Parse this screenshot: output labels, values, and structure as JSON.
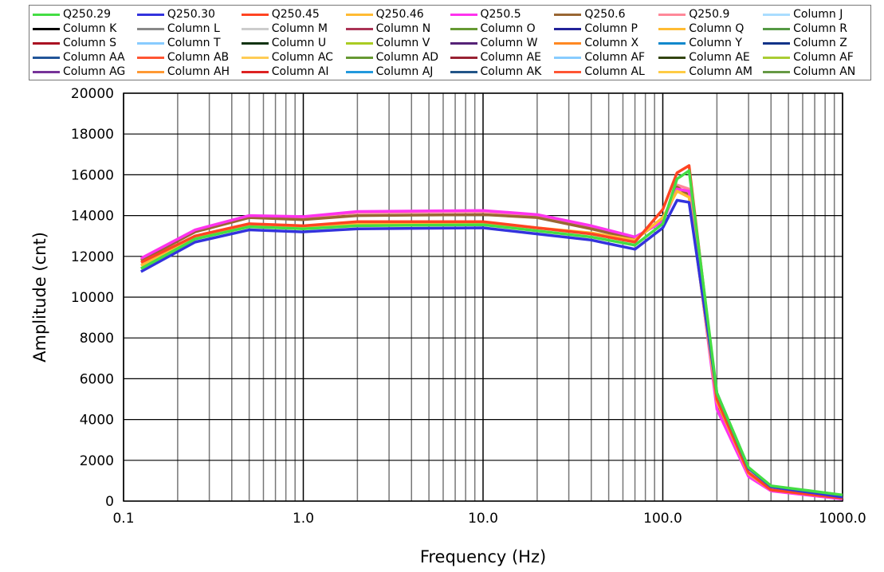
{
  "chart_data": {
    "type": "line",
    "xlabel": "Frequency (Hz)",
    "ylabel": "Amplitude (cnt)",
    "xscale": "log",
    "xlim": [
      0.1,
      1000
    ],
    "ylim": [
      0,
      20000
    ],
    "xticks": [
      "0.1",
      "1.0",
      "10.0",
      "100.0",
      "1000.0"
    ],
    "yticks": [
      "0",
      "2000",
      "4000",
      "6000",
      "8000",
      "10000",
      "12000",
      "14000",
      "16000",
      "18000",
      "20000"
    ],
    "grid": true,
    "legend_position": "top",
    "x": [
      0.125,
      0.25,
      0.5,
      1,
      2,
      10,
      20,
      40,
      70,
      100,
      120,
      140,
      200,
      300,
      400,
      1000
    ],
    "series": [
      {
        "name": "Q250.29",
        "color": "#44dd44",
        "values": [
          11400,
          12850,
          13450,
          13350,
          13500,
          13550,
          13250,
          12950,
          12550,
          13600,
          15800,
          16200,
          5300,
          1650,
          750,
          300
        ]
      },
      {
        "name": "Q250.30",
        "color": "#3333dd",
        "values": [
          11250,
          12700,
          13300,
          13200,
          13350,
          13400,
          13100,
          12800,
          12350,
          13400,
          14750,
          14650,
          5300,
          1600,
          700,
          200
        ]
      },
      {
        "name": "Q250.45",
        "color": "#ff4422",
        "values": [
          11700,
          13000,
          13600,
          13500,
          13700,
          13700,
          13400,
          13100,
          12700,
          14300,
          16100,
          16450,
          5000,
          1400,
          550,
          150
        ]
      },
      {
        "name": "Q250.46",
        "color": "#ffbb33",
        "values": [
          11550,
          12900,
          13500,
          13450,
          13600,
          13650,
          13400,
          13150,
          12800,
          13900,
          15200,
          14900,
          4900,
          1350,
          550,
          150
        ]
      },
      {
        "name": "Q250.5",
        "color": "#ff33ee",
        "values": [
          11900,
          13300,
          14000,
          13950,
          14200,
          14250,
          14050,
          13500,
          12950,
          13700,
          15300,
          15200,
          4500,
          1200,
          500,
          100
        ]
      },
      {
        "name": "Q250.6",
        "color": "#996633",
        "values": [
          11800,
          13200,
          13900,
          13800,
          14000,
          14050,
          13900,
          13350,
          12850,
          13800,
          15400,
          15000,
          4700,
          1300,
          520,
          120
        ]
      },
      {
        "name": "Q250.9",
        "color": "#ff8899",
        "values": [
          11850,
          13250,
          13950,
          13900,
          14150,
          14200,
          14000,
          13450,
          12900,
          13750,
          15500,
          15300,
          4600,
          1250,
          510,
          110
        ]
      }
    ],
    "legend": [
      {
        "label": "Q250.29",
        "color": "#44dd44"
      },
      {
        "label": "Q250.30",
        "color": "#3333dd"
      },
      {
        "label": "Q250.45",
        "color": "#ff4422"
      },
      {
        "label": "Q250.46",
        "color": "#ffbb33"
      },
      {
        "label": "Q250.5",
        "color": "#ff33ee"
      },
      {
        "label": "Q250.6",
        "color": "#996633"
      },
      {
        "label": "Q250.9",
        "color": "#ff8899"
      },
      {
        "label": "Column J",
        "color": "#aaddff"
      },
      {
        "label": "Column K",
        "color": "#000000"
      },
      {
        "label": "Column L",
        "color": "#888888"
      },
      {
        "label": "Column M",
        "color": "#cccccc"
      },
      {
        "label": "Column N",
        "color": "#aa3355"
      },
      {
        "label": "Column O",
        "color": "#669933"
      },
      {
        "label": "Column P",
        "color": "#222299"
      },
      {
        "label": "Column Q",
        "color": "#ffbb33"
      },
      {
        "label": "Column R",
        "color": "#559944"
      },
      {
        "label": "Column S",
        "color": "#aa1122"
      },
      {
        "label": "Column T",
        "color": "#88ccff"
      },
      {
        "label": "Column U",
        "color": "#113311"
      },
      {
        "label": "Column V",
        "color": "#aacc22"
      },
      {
        "label": "Column W",
        "color": "#552277"
      },
      {
        "label": "Column X",
        "color": "#ff8822"
      },
      {
        "label": "Column Y",
        "color": "#1188cc"
      },
      {
        "label": "Column Z",
        "color": "#113388"
      },
      {
        "label": "Column AA",
        "color": "#225599"
      },
      {
        "label": "Column AB",
        "color": "#ff5533"
      },
      {
        "label": "Column AC",
        "color": "#ffcc55"
      },
      {
        "label": "Column AD",
        "color": "#669933"
      },
      {
        "label": "Column AE",
        "color": "#992233"
      },
      {
        "label": "Column AF",
        "color": "#88ccff"
      },
      {
        "label": "Column AE",
        "color": "#334411"
      },
      {
        "label": "Column AF",
        "color": "#aacc33"
      },
      {
        "label": "Column AG",
        "color": "#773399"
      },
      {
        "label": "Column AH",
        "color": "#ff9933"
      },
      {
        "label": "Column AI",
        "color": "#dd2222"
      },
      {
        "label": "Column AJ",
        "color": "#2299dd"
      },
      {
        "label": "Column AK",
        "color": "#225588"
      },
      {
        "label": "Column AL",
        "color": "#ff5533"
      },
      {
        "label": "Column AM",
        "color": "#ffcc44"
      },
      {
        "label": "Column AN",
        "color": "#669944"
      }
    ]
  }
}
